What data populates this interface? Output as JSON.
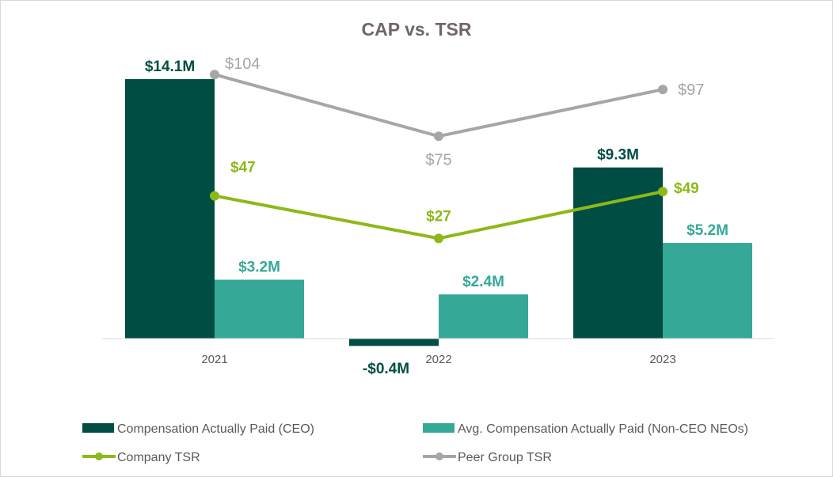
{
  "chart_data": {
    "type": "bar+line",
    "title": "CAP vs. TSR",
    "categories": [
      "2021",
      "2022",
      "2023"
    ],
    "bar_series": [
      {
        "name": "Compensation Actually Paid (CEO)",
        "values": [
          14.1,
          -0.4,
          9.3
        ],
        "labels": [
          "$14.1M",
          "-$0.4M",
          "$9.3M"
        ],
        "color": "#004d44"
      },
      {
        "name": "Avg. Compensation Actually Paid (Non-CEO NEOs)",
        "values": [
          3.2,
          2.4,
          5.2
        ],
        "labels": [
          "$3.2M",
          "$2.4M",
          "$5.2M"
        ],
        "color": "#35a898"
      }
    ],
    "line_series": [
      {
        "name": "Company TSR",
        "values": [
          47,
          27,
          49
        ],
        "labels": [
          "$47",
          "$27",
          "$49"
        ],
        "color": "#8cb918"
      },
      {
        "name": "Peer Group TSR",
        "values": [
          104,
          75,
          97
        ],
        "labels": [
          "$104",
          "$75",
          "$97"
        ],
        "color": "#a6a6a6"
      }
    ],
    "axes": {
      "primary_unit": "$M",
      "secondary_unit": "$",
      "axis_labels_shown": false
    },
    "grid": false,
    "legend": "bottom"
  }
}
